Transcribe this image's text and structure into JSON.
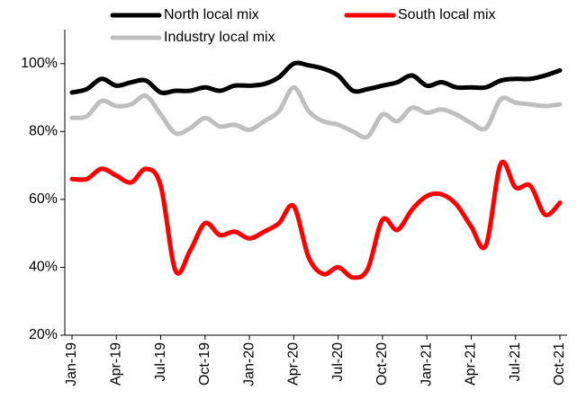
{
  "chart_data": {
    "type": "line",
    "categories": [
      "Jan-19",
      null,
      null,
      "Apr-19",
      null,
      null,
      "Jul-19",
      null,
      null,
      "Oct-19",
      null,
      null,
      "Jan-20",
      null,
      null,
      "Apr-20",
      null,
      null,
      "Jul-20",
      null,
      null,
      "Oct-20",
      null,
      null,
      "Jan-21",
      null,
      null,
      "Apr-21",
      null,
      null,
      "Jul-21",
      null,
      null,
      "Oct-21"
    ],
    "series": [
      {
        "name": "North local mix",
        "color": "#000000",
        "values": [
          91.5,
          92.5,
          95.5,
          93.5,
          94.5,
          95,
          91.5,
          92,
          92,
          93,
          92,
          93.5,
          93.5,
          94,
          96,
          100,
          99.5,
          98.5,
          96.5,
          92,
          92.5,
          93.5,
          94.5,
          96.5,
          93.5,
          94.5,
          93,
          93,
          93,
          95,
          95.5,
          95.5,
          96.5,
          98
        ]
      },
      {
        "name": "South local mix",
        "color": "#ff0000",
        "values": [
          66,
          66,
          69,
          67,
          65,
          69,
          64,
          39,
          45,
          53,
          49.5,
          50.5,
          48.5,
          50.5,
          53,
          58,
          43,
          38,
          40,
          37,
          39.5,
          54,
          51,
          57,
          61,
          61.5,
          58.5,
          52,
          46.5,
          70.5,
          63.5,
          64,
          55.5,
          59
        ]
      },
      {
        "name": "Industry local mix",
        "color": "#bfbfbf",
        "values": [
          84,
          84.5,
          89,
          87.5,
          88,
          90.5,
          85,
          79.5,
          81,
          84,
          81.5,
          82,
          80.5,
          83,
          86,
          93,
          86,
          83,
          82,
          80,
          78.5,
          85,
          83,
          87,
          85.5,
          86.5,
          85,
          82.5,
          81,
          89.5,
          88.5,
          88,
          87.5,
          88
        ]
      }
    ],
    "ylim": [
      20,
      110
    ],
    "yticks": [
      {
        "value": 20,
        "label": "20%"
      },
      {
        "value": 40,
        "label": "40%"
      },
      {
        "value": 60,
        "label": "60%"
      },
      {
        "value": 80,
        "label": "80%"
      },
      {
        "value": 100,
        "label": "100%"
      }
    ]
  }
}
